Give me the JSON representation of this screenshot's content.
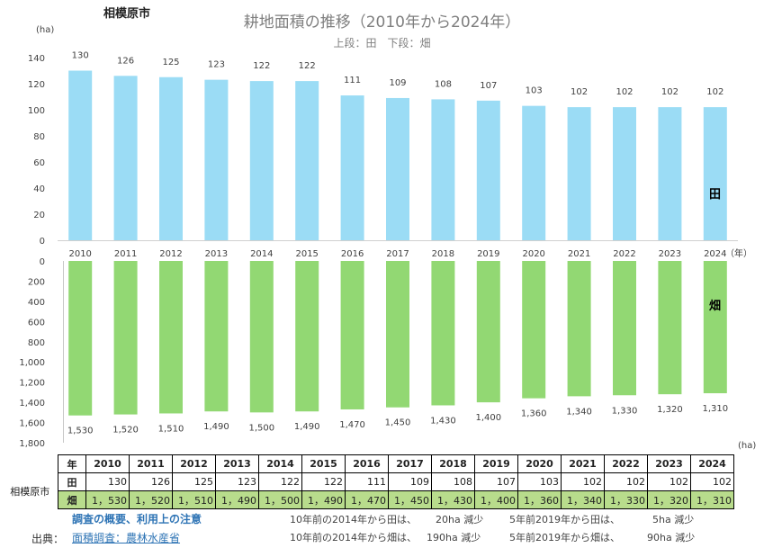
{
  "city": "相模原市",
  "chart_data": [
    {
      "type": "bar",
      "title": "耕地面積の推移（2010年から2024年）",
      "subtitle": "上段：田　下段：畑",
      "ylabel": "(ha)",
      "xlabel": "（年）",
      "categories": [
        "2010",
        "2011",
        "2012",
        "2013",
        "2014",
        "2015",
        "2016",
        "2017",
        "2018",
        "2019",
        "2020",
        "2021",
        "2022",
        "2023",
        "2024"
      ],
      "series": [
        {
          "name": "田",
          "values": [
            130,
            126,
            125,
            123,
            122,
            122,
            111,
            109,
            108,
            107,
            103,
            102,
            102,
            102,
            102
          ],
          "color": "#9bdcf5"
        }
      ],
      "ylim": [
        0,
        140
      ],
      "yticks": [
        "0",
        "20",
        "40",
        "60",
        "80",
        "100",
        "120",
        "140"
      ],
      "data_labels": [
        "130",
        "126",
        "125",
        "123",
        "122",
        "122",
        "111",
        "109",
        "108",
        "107",
        "103",
        "102",
        "102",
        "102",
        "102"
      ]
    },
    {
      "type": "bar",
      "ylabel": "(ha)",
      "categories": [
        "2010",
        "2011",
        "2012",
        "2013",
        "2014",
        "2015",
        "2016",
        "2017",
        "2018",
        "2019",
        "2020",
        "2021",
        "2022",
        "2023",
        "2024"
      ],
      "series": [
        {
          "name": "畑",
          "values": [
            1530,
            1520,
            1510,
            1490,
            1500,
            1490,
            1470,
            1450,
            1430,
            1400,
            1360,
            1340,
            1330,
            1320,
            1310
          ],
          "color": "#92d873"
        }
      ],
      "ylim": [
        0,
        1800
      ],
      "inverted": true,
      "yticks": [
        "0",
        "200",
        "400",
        "600",
        "800",
        "1,000",
        "1,200",
        "1,400",
        "1,600",
        "1,800"
      ],
      "data_labels": [
        "1,530",
        "1,520",
        "1,510",
        "1,490",
        "1,500",
        "1,490",
        "1,470",
        "1,450",
        "1,430",
        "1,400",
        "1,360",
        "1,340",
        "1,330",
        "1,320",
        "1,310"
      ]
    }
  ],
  "table": {
    "year_header": "年",
    "city_label": "相模原市",
    "years": [
      "2010",
      "2011",
      "2012",
      "2013",
      "2014",
      "2015",
      "2016",
      "2017",
      "2018",
      "2019",
      "2020",
      "2021",
      "2022",
      "2023",
      "2024"
    ],
    "rows": [
      {
        "label": "田",
        "values": [
          "130",
          "126",
          "125",
          "123",
          "122",
          "122",
          "111",
          "109",
          "108",
          "107",
          "103",
          "102",
          "102",
          "102",
          "102"
        ]
      },
      {
        "label": "畑",
        "values": [
          "1，530",
          "1，520",
          "1，510",
          "1，490",
          "1，500",
          "1，490",
          "1，470",
          "1，450",
          "1，430",
          "1，400",
          "1，360",
          "1，340",
          "1，330",
          "1，320",
          "1，310"
        ]
      }
    ]
  },
  "footer": {
    "survey_link": "調査の概要、利用上の注意",
    "source_label": "出典：",
    "source_link": "面積調査：農林水産省",
    "notes": [
      [
        "10年前の2014年から田は、",
        "20ha 減少",
        "5年前2019年から田は、",
        "5ha 減少"
      ],
      [
        "10年前の2014年から畑は、",
        "190ha 減少",
        "5年前2019年から畑は、",
        "90ha 減少"
      ]
    ]
  }
}
